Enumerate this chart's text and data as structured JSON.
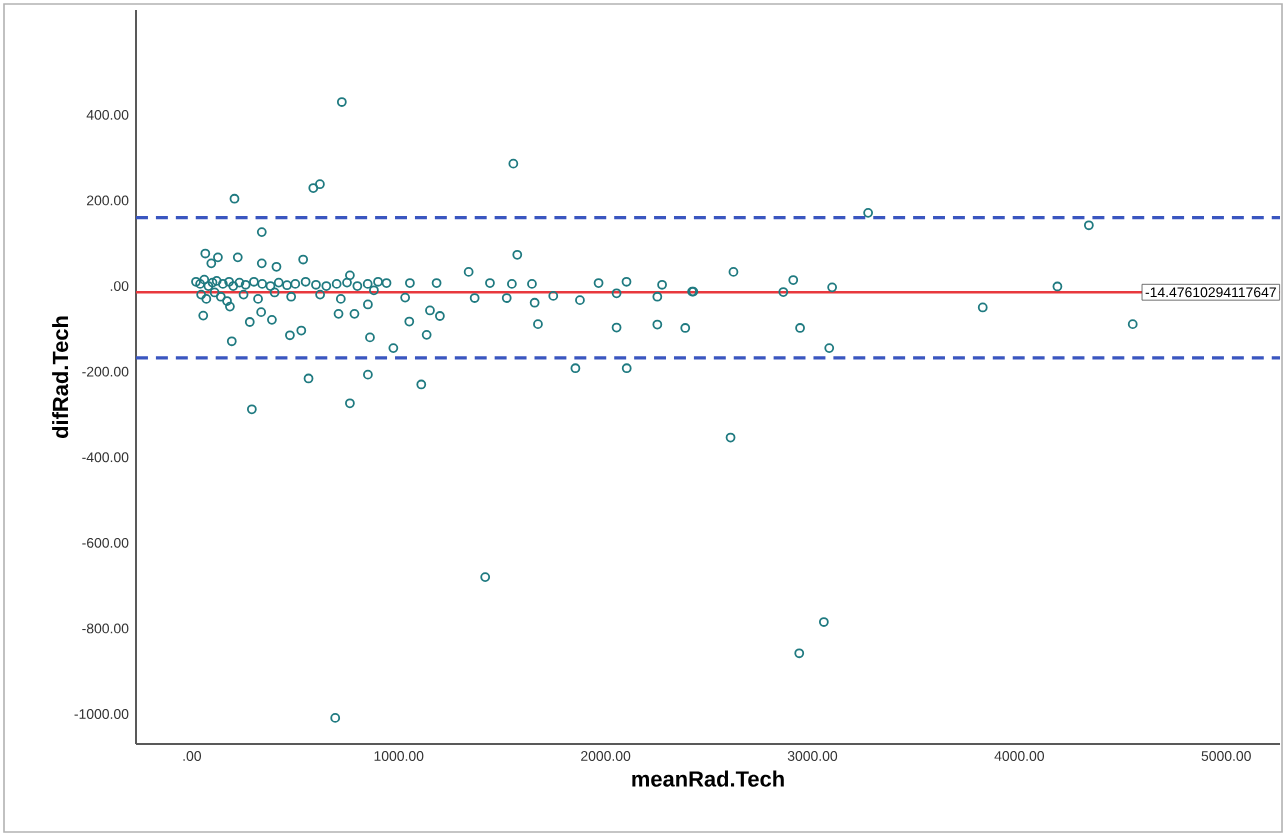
{
  "chart_data": {
    "type": "scatter",
    "xlabel": "meanRad.Tech",
    "ylabel": "difRad.Tech",
    "xlim": [
      -270,
      5260
    ],
    "ylim": [
      -1070,
      645
    ],
    "xticks": [
      {
        "value": 0,
        "label": ".00"
      },
      {
        "value": 1000,
        "label": "1000.00"
      },
      {
        "value": 2000,
        "label": "2000.00"
      },
      {
        "value": 3000,
        "label": "3000.00"
      },
      {
        "value": 4000,
        "label": "4000.00"
      },
      {
        "value": 5000,
        "label": "5000.00"
      }
    ],
    "yticks": [
      {
        "value": -1000,
        "label": "-1000.00"
      },
      {
        "value": -800,
        "label": "-800.00"
      },
      {
        "value": -600,
        "label": "-600.00"
      },
      {
        "value": -400,
        "label": "-400.00"
      },
      {
        "value": -200,
        "label": "-200.00"
      },
      {
        "value": 0,
        "label": ".00"
      },
      {
        "value": 200,
        "label": "200.00"
      },
      {
        "value": 400,
        "label": "400.00"
      }
    ],
    "grid": false,
    "marker": "circle",
    "series": [
      {
        "color": "#1f7a80",
        "x": [
          725,
          206,
          587,
          619,
          1554,
          338,
          1573,
          65,
          126,
          222,
          338,
          409,
          538,
          94,
          1338,
          764,
          941,
          1054,
          1183,
          1441,
          1547,
          1644,
          1966,
          2101,
          2273,
          2418,
          55,
          184,
          280,
          335,
          387,
          193,
          474,
          529,
          709,
          786,
          851,
          861,
          974,
          1051,
          1031,
          1151,
          1199,
          1135,
          1367,
          1522,
          1657,
          1673,
          1747,
          1876,
          2053,
          2053,
          2250,
          2250,
          2385,
          1854,
          2102,
          564,
          851,
          1109,
          764,
          290,
          3269,
          4336,
          2618,
          2907,
          2424,
          2859,
          3095,
          4184,
          2940,
          3823,
          4548,
          3081,
          2604,
          1418,
          3055,
          2936,
          693,
          20,
          40,
          60,
          80,
          100,
          120,
          150,
          180,
          200,
          230,
          260,
          300,
          340,
          380,
          420,
          460,
          500,
          550,
          600,
          650,
          700,
          750,
          800,
          850,
          900,
          45,
          70,
          110,
          140,
          170,
          250,
          320,
          400,
          480,
          620,
          720,
          880
        ],
        "values": [
          430,
          204,
          229,
          238,
          286,
          126,
          73,
          76,
          67,
          67,
          53,
          45,
          62,
          53,
          33,
          25,
          7,
          7,
          7,
          7,
          5,
          5,
          7,
          10,
          3,
          -13,
          -69,
          -48,
          -84,
          -61,
          -79,
          -129,
          -115,
          -104,
          -65,
          -65,
          -43,
          -120,
          -145,
          -83,
          -27,
          -57,
          -70,
          -114,
          -28,
          -28,
          -39,
          -89,
          -23,
          -33,
          -17,
          -97,
          -25,
          -90,
          -98,
          -192,
          -192,
          -216,
          -207,
          -230,
          -274,
          -288,
          171,
          142,
          33,
          14,
          -13,
          -14,
          -3,
          -1,
          -98,
          -50,
          -89,
          -145,
          -354,
          -680,
          -785,
          -858,
          -1009,
          10,
          5,
          15,
          0,
          8,
          12,
          5,
          10,
          0,
          8,
          3,
          10,
          5,
          0,
          8,
          2,
          5,
          10,
          3,
          0,
          5,
          8,
          0,
          5,
          10,
          -20,
          -30,
          -15,
          -25,
          -35,
          -20,
          -30,
          -15,
          -25,
          -20,
          -30,
          -10
        ]
      }
    ],
    "ref_lines": [
      {
        "axis": "y",
        "value": -14.47610294117647,
        "label": "-14.47610294117647",
        "color": "#e8383d",
        "line_style": "solid"
      },
      {
        "axis": "y",
        "value": 160,
        "color": "#3a56c0",
        "line_style": "dashed"
      },
      {
        "axis": "y",
        "value": -168,
        "color": "#3a56c0",
        "line_style": "dashed"
      }
    ]
  }
}
